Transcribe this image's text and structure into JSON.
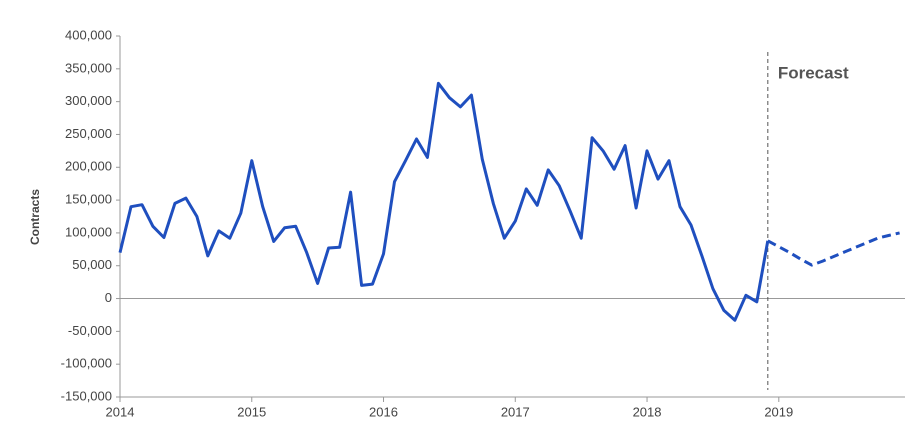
{
  "chart_data": {
    "type": "line",
    "y_label": "Contracts",
    "annotation": "Forecast",
    "categories": [
      "2014",
      null,
      null,
      null,
      null,
      null,
      null,
      null,
      null,
      null,
      null,
      null,
      "2015",
      null,
      null,
      null,
      null,
      null,
      null,
      null,
      null,
      null,
      null,
      null,
      "2016",
      null,
      null,
      null,
      null,
      null,
      null,
      null,
      null,
      null,
      null,
      null,
      "2017",
      null,
      null,
      null,
      null,
      null,
      null,
      null,
      null,
      null,
      null,
      null,
      "2018",
      null,
      null,
      null,
      null,
      null,
      null,
      null,
      null,
      null,
      null,
      null,
      "2019",
      null,
      null,
      null,
      null,
      null,
      null,
      null,
      null,
      null,
      null,
      null
    ],
    "series": [
      {
        "color": "#1f4fbf",
        "line_style": "solid",
        "values": [
          70000,
          140000,
          143000,
          110000,
          93000,
          145000,
          153000,
          125000,
          65000,
          103000,
          92000,
          130000,
          210000,
          140000,
          87000,
          108000,
          110000,
          70000,
          23000,
          77000,
          78000,
          162000,
          20000,
          22000,
          68000,
          178000,
          210000,
          243000,
          215000,
          328000,
          306000,
          292000,
          310000,
          212000,
          145000,
          92000,
          118000,
          167000,
          142000,
          196000,
          172000,
          133000,
          92000,
          245000,
          225000,
          197000,
          233000,
          138000,
          225000,
          182000,
          210000,
          140000,
          112000,
          65000,
          15000,
          -18000,
          -33000,
          5000,
          -5000,
          88000,
          null,
          null,
          null,
          null,
          null,
          null,
          null,
          null,
          null,
          null,
          null,
          null
        ]
      },
      {
        "color": "#1f4fbf",
        "line_style": "dashed",
        "values": [
          null,
          null,
          null,
          null,
          null,
          null,
          null,
          null,
          null,
          null,
          null,
          null,
          null,
          null,
          null,
          null,
          null,
          null,
          null,
          null,
          null,
          null,
          null,
          null,
          null,
          null,
          null,
          null,
          null,
          null,
          null,
          null,
          null,
          null,
          null,
          null,
          null,
          null,
          null,
          null,
          null,
          null,
          null,
          null,
          null,
          null,
          null,
          null,
          null,
          null,
          null,
          null,
          null,
          null,
          null,
          null,
          null,
          null,
          null,
          88000,
          79000,
          70000,
          60000,
          51000,
          57000,
          64000,
          71000,
          78000,
          85000,
          92000,
          96000,
          100000
        ]
      }
    ],
    "forecast_start": 59,
    "ylim": [
      -150000,
      400000
    ],
    "yticks": [
      {
        "value": -150000,
        "label": "-150,000"
      },
      {
        "value": -100000,
        "label": "-100,000"
      },
      {
        "value": -50000,
        "label": "-50,000"
      },
      0,
      {
        "value": 50000,
        "label": "50,000"
      },
      {
        "value": 100000,
        "label": "100,000"
      },
      {
        "value": 150000,
        "label": "150,000"
      },
      {
        "value": 200000,
        "label": "200,000"
      },
      {
        "value": 250000,
        "label": "250,000"
      },
      {
        "value": 300000,
        "label": "300,000"
      },
      {
        "value": 350000,
        "label": "350,000"
      },
      {
        "value": 400000,
        "label": "400,000"
      }
    ],
    "grid": false
  }
}
